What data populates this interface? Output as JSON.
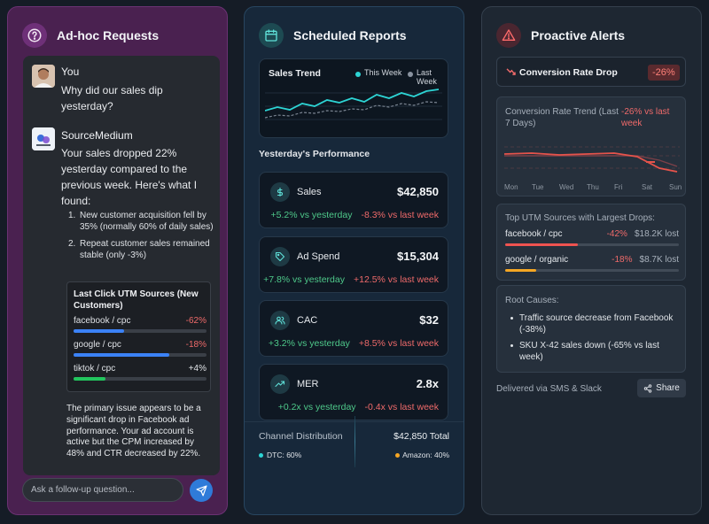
{
  "adhoc": {
    "title": "Ad-hoc Requests",
    "user_name": "You",
    "user_message": "Why did our sales dip yesterday?",
    "assistant_name": "SourceMedium",
    "assistant_intro": "Your sales dropped 22% yesterday compared to the previous week. Here's what I found:",
    "findings": [
      {
        "num": "1.",
        "text": "New customer acquisition fell by 35% (normally 60% of daily sales)"
      },
      {
        "num": "2.",
        "text": "Repeat customer sales remained stable (only -3%)"
      }
    ],
    "utm_card": {
      "title": "Last Click UTM Sources (New Customers)",
      "rows": [
        {
          "source": "facebook / cpc",
          "change": "-62%",
          "bar_fraction": 0.38,
          "color": "#3b82f6",
          "change_color": "#ef6a6a"
        },
        {
          "source": "google / cpc",
          "change": "-18%",
          "bar_fraction": 0.72,
          "color": "#3b82f6",
          "change_color": "#ef6a6a"
        },
        {
          "source": "tiktok / cpc",
          "change": "+4%",
          "bar_fraction": 0.24,
          "color": "#22c55e",
          "change_color": "#dfe2e6"
        }
      ]
    },
    "summary": "The primary issue appears to be a significant drop in Facebook ad performance. Your ad account is active but the CPM increased by 48% and CTR decreased by 22%.",
    "input_placeholder": "Ask a follow-up question...",
    "icon": "question-circle-icon"
  },
  "scheduled": {
    "title": "Scheduled Reports",
    "icon": "calendar-icon",
    "chart": {
      "title": "Sales Trend",
      "legend": [
        {
          "label": "This Week",
          "color": "#2dd4d4"
        },
        {
          "label": "Last Week",
          "color": "#8a93a0"
        }
      ]
    },
    "performance_label": "Yesterday's Performance",
    "metrics": [
      {
        "label": "Sales",
        "value": "$42,850",
        "vs_yesterday": "+5.2% vs yesterday",
        "vs_last_week": "-8.3% vs last week",
        "icon": "dollar-icon"
      },
      {
        "label": "Ad Spend",
        "value": "$15,304",
        "vs_yesterday": "+7.8% vs yesterday",
        "vs_last_week": "+12.5% vs last week",
        "icon": "tag-icon"
      },
      {
        "label": "CAC",
        "value": "$32",
        "vs_yesterday": "+3.2% vs yesterday",
        "vs_last_week": "+8.5% vs last week",
        "icon": "users-icon"
      },
      {
        "label": "MER",
        "value": "2.8x",
        "vs_yesterday": "+0.2x vs yesterday",
        "vs_last_week": "-0.4x vs last week",
        "icon": "trend-up-icon"
      }
    ],
    "channel": {
      "label": "Channel Distribution",
      "total": "$42,850 Total",
      "dtc": "DTC: 60%",
      "amazon": "Amazon: 40%",
      "dtc_color": "#2dd4d4",
      "amazon_color": "#f5a623"
    }
  },
  "alerts": {
    "title": "Proactive Alerts",
    "icon": "warning-triangle-icon",
    "headline": "Conversion Rate Drop",
    "headline_badge": "-26%",
    "trend_title": "Conversion Rate Trend (Last 7 Days)",
    "trend_badge": "-26% vs last week",
    "days": [
      "Mon",
      "Tue",
      "Wed",
      "Thu",
      "Fri",
      "Sat",
      "Sun"
    ],
    "utm_title": "Top UTM Sources with Largest Drops:",
    "utm_rows": [
      {
        "source": "facebook / cpc",
        "change": "-42%",
        "lost": "$18.2K lost",
        "bar_fraction": 0.42,
        "color": "#ef5350"
      },
      {
        "source": "google / organic",
        "change": "-18%",
        "lost": "$8.7K lost",
        "bar_fraction": 0.18,
        "color": "#f5a623"
      }
    ],
    "root_title": "Root Causes:",
    "root_causes": [
      "Traffic source decrease from Facebook (-38%)",
      "SKU X-42 sales down (-65% vs last week)"
    ],
    "delivered": "Delivered via SMS & Slack",
    "share": "Share"
  }
}
